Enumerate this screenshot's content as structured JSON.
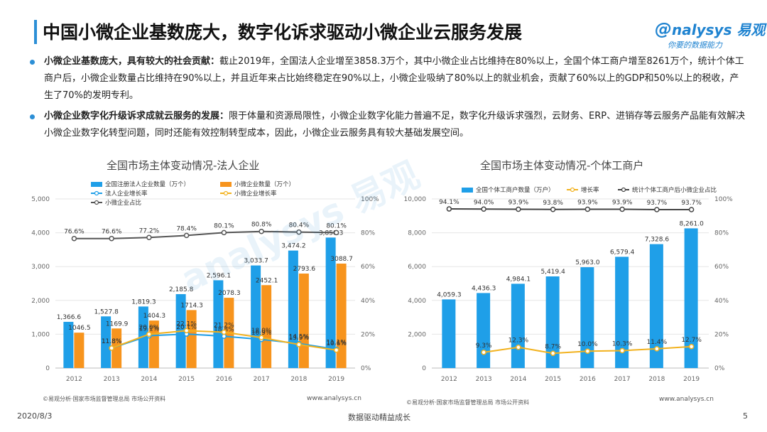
{
  "header": {
    "title": "中国小微企业基数庞大，数字化诉求驱动小微企业云服务发展",
    "logo_text": "nalysys 易观",
    "logo_slogan": "你要的数据能力"
  },
  "bullets": [
    {
      "bold": "小微企业基数庞大，具有较大的社会贡献：",
      "text": "截止2019年，全国法人企业增至3858.3万个，其中小微企业占比维持在80%以上，全国个体工商户增至8261万个，统计个体工商户后，小微企业数量占比维持在90%以上，并且近年来占比始终稳定在90%以上，小微企业吸纳了80%以上的就业机会，贡献了60%以上的GDP和50%以上的税收，产生了70%的发明专利。"
    },
    {
      "bold": "小微企业数字化升级诉求成就云服务的发展：",
      "text": "限于体量和资源局限性，小微企业数字化能力普遍不足，数字化升级诉求强烈，云财务、ERP、进销存等云服务产品能有效解决小微企业数字化转型问题，同时还能有效控制转型成本，因此，小微企业云服务具有较大基础发展空间。"
    }
  ],
  "chart_data": [
    {
      "type": "bar",
      "title": "全国市场主体变动情况-法人企业",
      "categories": [
        "2012",
        "2013",
        "2014",
        "2015",
        "2016",
        "2017",
        "2018",
        "2019"
      ],
      "ylim": [
        0,
        5000
      ],
      "yticks": [
        "0",
        "1,000",
        "2,000",
        "3,000",
        "4,000",
        "5,000"
      ],
      "y2lim": [
        0,
        100
      ],
      "y2ticks": [
        "0%",
        "20%",
        "40%",
        "60%",
        "80%",
        "100%"
      ],
      "series": [
        {
          "name": "全国注册法人企业数量（万个）",
          "kind": "bar",
          "axis": "left",
          "color": "#1f9fe8",
          "values": [
            1366.6,
            1527.8,
            1819.3,
            2185.8,
            2596.1,
            3033.7,
            3474.2,
            3858.3
          ],
          "labels": [
            "1,366.6",
            "1,527.8",
            "1,819.3",
            "2,185.8",
            "2,596.1",
            "3,033.7",
            "3,474.2",
            "3,858.3"
          ]
        },
        {
          "name": "小微企业数量（万个）",
          "kind": "bar",
          "axis": "left",
          "color": "#f7941d",
          "values": [
            1046.5,
            1169.9,
            1404.3,
            1714.3,
            2078.3,
            2452.1,
            2793.6,
            3088.7
          ],
          "labels": [
            "1046.5",
            "1169.9",
            "1404.3",
            "1714.3",
            "2078.3",
            "2452.1",
            "2793.6",
            "3088.7"
          ]
        },
        {
          "name": "法人企业增长率",
          "kind": "line",
          "axis": "right",
          "color": "#1f9fe8",
          "values": [
            null,
            11.8,
            19.1,
            20.1,
            18.8,
            16.9,
            14.5,
            11.1
          ],
          "labels": [
            "",
            "11.8%",
            "19.1%",
            "20.1%",
            "18.8%",
            "16.9%",
            "14.5%",
            "11.1%"
          ]
        },
        {
          "name": "小微企业增长率",
          "kind": "line",
          "axis": "right",
          "color": "#f2b21f",
          "values": [
            null,
            11.8,
            20.0,
            22.1,
            21.2,
            18.0,
            13.9,
            10.6
          ],
          "labels": [
            "",
            "11.8%",
            "20.0%",
            "22.1%",
            "21.2%",
            "18.0%",
            "13.9%",
            "10.6%"
          ]
        },
        {
          "name": "小微企业占比",
          "kind": "line",
          "axis": "right",
          "color": "#555555",
          "values": [
            76.6,
            76.6,
            77.2,
            78.4,
            80.1,
            80.8,
            80.4,
            80.1
          ],
          "labels": [
            "76.6%",
            "76.6%",
            "77.2%",
            "78.4%",
            "80.1%",
            "80.8%",
            "80.4%",
            "80.1%"
          ]
        }
      ],
      "source": "©易观分析·国家市场监督管理总局 市场公开资料",
      "website": "www.analysys.cn"
    },
    {
      "type": "bar",
      "title": "全国市场主体变动情况-个体工商户",
      "categories": [
        "2012",
        "2013",
        "2014",
        "2015",
        "2016",
        "2017",
        "2018",
        "2019"
      ],
      "ylim": [
        0,
        10000
      ],
      "yticks": [
        "0",
        "2,000",
        "4,000",
        "6,000",
        "8,000",
        "10,000"
      ],
      "y2lim": [
        0,
        100
      ],
      "y2ticks": [
        "0%",
        "20%",
        "40%",
        "60%",
        "80%",
        "100%"
      ],
      "series": [
        {
          "name": "全国个体工商户数量（万户）",
          "kind": "bar",
          "axis": "left",
          "color": "#1f9fe8",
          "values": [
            4059.3,
            4436.3,
            4984.1,
            5419.4,
            5963.0,
            6579.4,
            7328.6,
            8261.0
          ],
          "labels": [
            "4,059.3",
            "4,436.3",
            "4,984.1",
            "5,419.4",
            "5,963.0",
            "6,579.4",
            "7,328.6",
            "8,261.0"
          ]
        },
        {
          "name": "增长率",
          "kind": "line",
          "axis": "right",
          "color": "#f2b21f",
          "values": [
            null,
            9.3,
            12.3,
            8.7,
            10.0,
            10.3,
            11.4,
            12.7
          ],
          "labels": [
            "",
            "9.3%",
            "12.3%",
            "8.7%",
            "10.0%",
            "10.3%",
            "11.4%",
            "12.7%"
          ]
        },
        {
          "name": "统计个体工商户后小微企业占比",
          "kind": "line",
          "axis": "right",
          "color": "#444444",
          "values": [
            94.1,
            94.0,
            93.9,
            93.8,
            93.9,
            93.9,
            93.7,
            93.7
          ],
          "labels": [
            "94.1%",
            "94.0%",
            "93.9%",
            "93.8%",
            "93.9%",
            "93.9%",
            "93.7%",
            "93.7%"
          ]
        }
      ],
      "source": "©易观分析·国家市场监督管理总局 市场公开资料",
      "website": "www.analysys.cn"
    }
  ],
  "footer": {
    "date": "2020/8/3",
    "slogan": "数据驱动精益成长",
    "page": "5"
  }
}
